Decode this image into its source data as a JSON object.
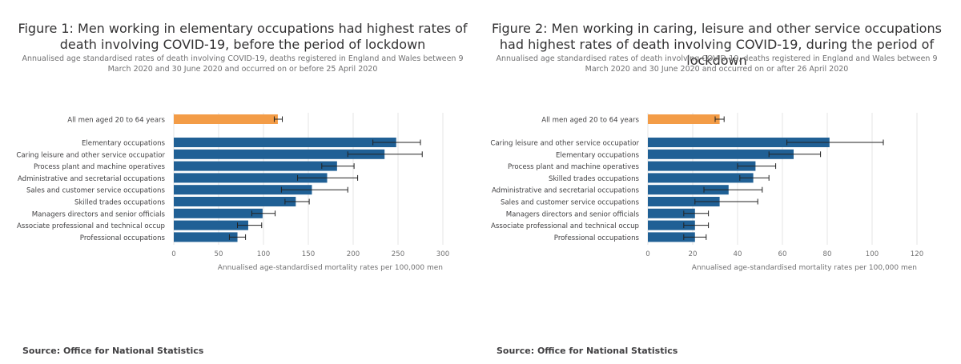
{
  "colors": {
    "highlight": "#F39C47",
    "bar": "#206095",
    "grid": "#E6E6E6",
    "error": "#222222",
    "label": "#414042",
    "axis_label": "#707071"
  },
  "charts": [
    {
      "title": "Figure 1: Men working in elementary occupations had highest rates of death involving COVID-19, before the period of lockdown",
      "subtitle": "Annualised age standardised rates of death involving COVID-19, deaths registered in England and Wales between 9 March 2020 and 30 June 2020 and occurred on or before 25 April 2020",
      "source": "Source: Office for National Statistics"
    },
    {
      "title": "Figure 2: Men working in caring, leisure and other service occupations had highest rates of death involving COVID-19, during the period of lockdown",
      "subtitle": "Annualised age standardised rates of death involving COVID-19, deaths registered in England and Wales between 9 March 2020 and 30 June 2020 and occurred on or after 26 April 2020",
      "source": "Source: Office for National Statistics"
    }
  ],
  "chart_data": [
    {
      "type": "bar",
      "orientation": "horizontal",
      "title": "Figure 1: Men working in elementary occupations had highest rates of death involving COVID-19, before the period of lockdown",
      "xlabel": "Annualised age-standardised mortality rates per 100,000 men",
      "xlim": [
        0,
        300
      ],
      "xticks": [
        0,
        50,
        100,
        150,
        200,
        250,
        300
      ],
      "grid": true,
      "highlight": {
        "category": "All men aged 20 to 64 years",
        "value": 116,
        "low": 112,
        "high": 121
      },
      "categories": [
        "Elementary occupations",
        "Caring leisure and other service occupatior",
        "Process plant and machine operatives",
        "Administrative and secretarial occupations",
        "Sales and customer service occupations",
        "Skilled trades occupations",
        "Managers directors and senior officials",
        "Associate professional and technical occup",
        "Professional occupations"
      ],
      "values": [
        248,
        235,
        182,
        171,
        154,
        136,
        99,
        83,
        71
      ],
      "ci_low": [
        222,
        194,
        165,
        138,
        120,
        124,
        87,
        71,
        62
      ],
      "ci_high": [
        275,
        277,
        201,
        205,
        194,
        151,
        113,
        98,
        80
      ]
    },
    {
      "type": "bar",
      "orientation": "horizontal",
      "title": "Figure 2: Men working in caring, leisure and other service occupations had highest rates of death involving COVID-19, during the period of lockdown",
      "xlabel": "Annualised age-standardised mortality rates per 100,000 men",
      "xlim": [
        0,
        120
      ],
      "xticks": [
        0,
        20,
        40,
        60,
        80,
        100,
        120
      ],
      "grid": true,
      "highlight": {
        "category": "All men aged 20 to 64 years",
        "value": 32,
        "low": 30,
        "high": 34
      },
      "categories": [
        "Caring leisure and other service occupatior",
        "Elementary occupations",
        "Process plant and machine operatives",
        "Skilled trades occupations",
        "Administrative and secretarial occupations",
        "Sales and customer service occupations",
        "Managers directors and senior officials",
        "Associate professional and technical occup",
        "Professional occupations"
      ],
      "values": [
        81,
        65,
        48,
        47,
        36,
        32,
        21,
        21,
        21
      ],
      "ci_low": [
        62,
        54,
        40,
        41,
        25,
        21,
        16,
        16,
        16
      ],
      "ci_high": [
        105,
        77,
        57,
        54,
        51,
        49,
        27,
        27,
        26
      ]
    }
  ]
}
